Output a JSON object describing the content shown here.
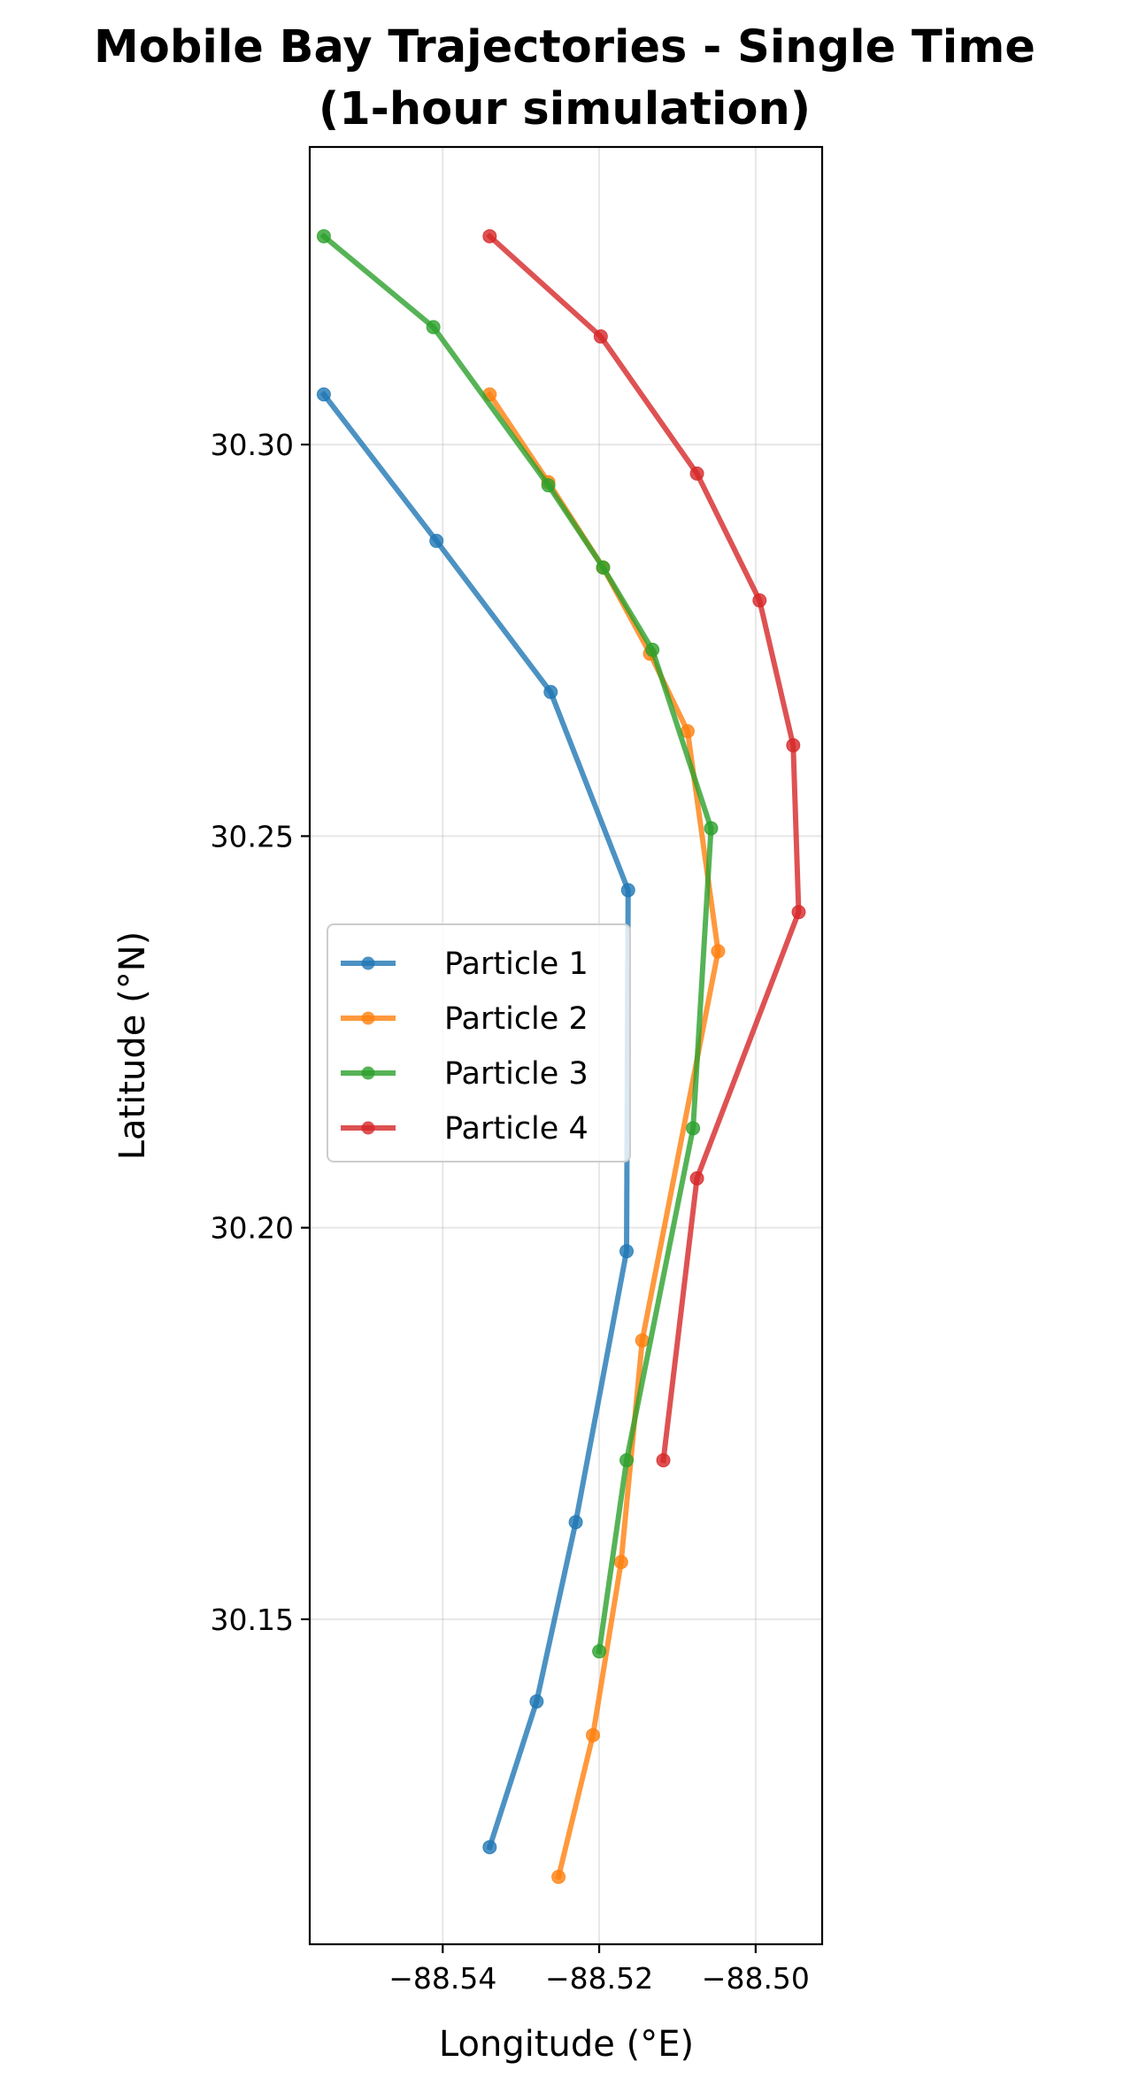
{
  "chart_data": {
    "type": "line",
    "title": "Mobile Bay Trajectories - Single Time\n(1-hour simulation)",
    "title_lines": [
      "Mobile Bay Trajectories - Single Time",
      "(1-hour simulation)"
    ],
    "xlabel": "Longitude (°E)",
    "ylabel": "Latitude (°N)",
    "xlim": [
      -88.557,
      -88.4915
    ],
    "ylim": [
      30.1085,
      30.338
    ],
    "x_ticks": [
      -88.54,
      -88.52,
      -88.5
    ],
    "x_tick_labels": [
      "−88.54",
      "−88.52",
      "−88.50"
    ],
    "y_ticks": [
      30.15,
      30.2,
      30.25,
      30.3
    ],
    "y_tick_labels": [
      "30.15",
      "30.20",
      "30.25",
      "30.30"
    ],
    "grid": true,
    "legend_position": "center-left",
    "series": [
      {
        "name": "Particle 1",
        "color": "#1f77b4",
        "points": [
          [
            -88.5552,
            30.3064
          ],
          [
            -88.5408,
            30.2877
          ],
          [
            -88.5262,
            30.2684
          ],
          [
            -88.5163,
            30.2431
          ],
          [
            -88.5165,
            30.197
          ],
          [
            -88.523,
            30.1624
          ],
          [
            -88.528,
            30.1395
          ],
          [
            -88.534,
            30.1209
          ]
        ]
      },
      {
        "name": "Particle 2",
        "color": "#ff7f0e",
        "points": [
          [
            -88.534,
            30.3064
          ],
          [
            -88.5265,
            30.2952
          ],
          [
            -88.5195,
            30.2843
          ],
          [
            -88.5135,
            30.2733
          ],
          [
            -88.5087,
            30.2634
          ],
          [
            -88.5048,
            30.2353
          ],
          [
            -88.5145,
            30.1856
          ],
          [
            -88.5172,
            30.1573
          ],
          [
            -88.5208,
            30.1352
          ],
          [
            -88.5252,
            30.1171
          ]
        ]
      },
      {
        "name": "Particle 3",
        "color": "#2ca02c",
        "points": [
          [
            -88.5552,
            30.3266
          ],
          [
            -88.5412,
            30.315
          ],
          [
            -88.5265,
            30.2948
          ],
          [
            -88.5195,
            30.2843
          ],
          [
            -88.5132,
            30.2738
          ],
          [
            -88.5057,
            30.251
          ],
          [
            -88.508,
            30.2127
          ],
          [
            -88.5165,
            30.1703
          ],
          [
            -88.52,
            30.1459
          ]
        ]
      },
      {
        "name": "Particle 4",
        "color": "#d62728",
        "points": [
          [
            -88.534,
            30.3266
          ],
          [
            -88.5198,
            30.3138
          ],
          [
            -88.5075,
            30.2963
          ],
          [
            -88.4995,
            30.2801
          ],
          [
            -88.4952,
            30.2616
          ],
          [
            -88.4945,
            30.2403
          ],
          [
            -88.5075,
            30.2063
          ],
          [
            -88.5118,
            30.1703
          ]
        ]
      }
    ]
  }
}
